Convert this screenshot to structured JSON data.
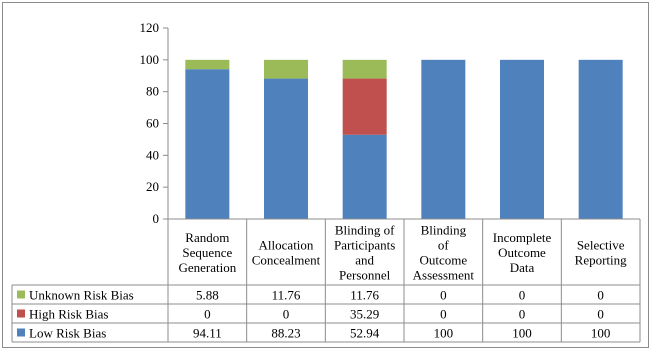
{
  "chart_data": {
    "type": "bar",
    "stacked": true,
    "categories": [
      [
        "Random",
        "Sequence",
        "Generation"
      ],
      [
        "Allocation",
        "Concealment"
      ],
      [
        "Blinding of",
        "Participants",
        "and",
        "Personnel"
      ],
      [
        "Blinding",
        "of",
        "Outcome",
        "Assessment"
      ],
      [
        "Incomplete",
        "Outcome",
        "Data"
      ],
      [
        "Selective",
        "Reporting"
      ]
    ],
    "series": [
      {
        "name": "Low Risk Bias",
        "color": "#4f81bd",
        "values": [
          94.11,
          88.23,
          52.94,
          100,
          100,
          100
        ],
        "labels": [
          "94.11",
          "88.23",
          "52.94",
          "100",
          "100",
          "100"
        ]
      },
      {
        "name": "High Risk Bias",
        "color": "#c0504d",
        "values": [
          0,
          0,
          35.29,
          0,
          0,
          0
        ],
        "labels": [
          "0",
          "0",
          "35.29",
          "0",
          "0",
          "0"
        ]
      },
      {
        "name": "Unknown Risk Bias",
        "color": "#9bbb59",
        "values": [
          5.88,
          11.76,
          11.76,
          0,
          0,
          0
        ],
        "labels": [
          "5.88",
          "11.76",
          "11.76",
          "0",
          "0",
          "0"
        ]
      }
    ],
    "table_row_order": [
      2,
      1,
      0
    ],
    "ylim": [
      0,
      120
    ],
    "yticks": [
      0,
      20,
      40,
      60,
      80,
      100,
      120
    ],
    "grid": false,
    "legend": "data-table"
  }
}
